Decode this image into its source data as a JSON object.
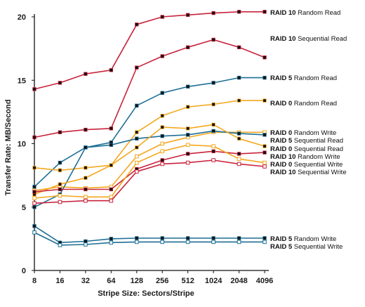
{
  "chart_data": {
    "type": "line",
    "xlabel": "Stripe Size: Sectors/Stripe",
    "ylabel": "Transfer Rate: MB/Second",
    "categories": [
      "8",
      "16",
      "32",
      "64",
      "128",
      "256",
      "512",
      "1024",
      "2048",
      "4096"
    ],
    "ylim": [
      0,
      20
    ],
    "yticks": [
      "0",
      "5",
      "10",
      "15",
      "20"
    ],
    "grid": false,
    "legend": "right, labels beside line ends",
    "series": [
      {
        "name_a": "RAID 10",
        "name_b": "Random Read",
        "color": "#c8233c",
        "marker": "filled",
        "values": [
          14.3,
          14.8,
          15.5,
          15.8,
          19.4,
          20.0,
          20.15,
          20.3,
          20.4,
          20.4
        ]
      },
      {
        "name_a": "RAID 10",
        "name_b": "Sequential Read",
        "color": "#c8233c",
        "marker": "filled",
        "values": [
          10.5,
          10.9,
          11.1,
          11.2,
          16.0,
          16.9,
          17.6,
          18.2,
          17.6,
          16.8
        ]
      },
      {
        "name_a": "RAID 5",
        "name_b": "Random Read",
        "color": "#1f6f96",
        "marker": "filled",
        "values": [
          6.6,
          8.5,
          9.7,
          10.1,
          13.0,
          14.0,
          14.5,
          14.8,
          15.2,
          15.2
        ]
      },
      {
        "name_a": "RAID 0",
        "name_b": "Random Read",
        "color": "#f3a81f",
        "marker": "filled",
        "values": [
          8.1,
          7.9,
          8.1,
          8.3,
          10.9,
          12.2,
          12.9,
          13.1,
          13.4,
          13.4
        ]
      },
      {
        "name_a": "RAID 0",
        "name_b": "Random Write",
        "color": "#f3a81f",
        "marker": "open",
        "values": [
          6.3,
          6.6,
          6.5,
          6.6,
          9.0,
          10.0,
          10.5,
          10.9,
          10.9,
          10.9
        ]
      },
      {
        "name_a": "RAID 5",
        "name_b": "Sequential Read",
        "color": "#1f6f96",
        "marker": "filled",
        "values": [
          5.0,
          6.0,
          9.7,
          9.9,
          10.4,
          10.6,
          10.7,
          11.0,
          10.8,
          10.7
        ]
      },
      {
        "name_a": "RAID 0",
        "name_b": "Sequential Read",
        "color": "#f3a81f",
        "marker": "filled",
        "values": [
          6.0,
          6.8,
          7.3,
          8.3,
          9.7,
          11.3,
          11.2,
          11.5,
          10.4,
          9.8
        ]
      },
      {
        "name_a": "RAID 10",
        "name_b": "Random Write",
        "color": "#c8233c",
        "marker": "filled",
        "values": [
          6.2,
          6.4,
          6.4,
          6.4,
          8.0,
          8.7,
          9.2,
          9.4,
          9.2,
          9.3
        ]
      },
      {
        "name_a": "RAID 0",
        "name_b": "Sequential Write",
        "color": "#f3a81f",
        "marker": "open",
        "values": [
          5.7,
          5.9,
          5.8,
          5.8,
          8.5,
          9.4,
          9.9,
          9.8,
          8.8,
          8.5
        ]
      },
      {
        "name_a": "RAID 10",
        "name_b": "Sequential Write",
        "color": "#c8233c",
        "marker": "open",
        "values": [
          5.3,
          5.4,
          5.5,
          5.5,
          7.8,
          8.4,
          8.5,
          8.7,
          8.4,
          8.2
        ]
      },
      {
        "name_a": "RAID 5",
        "name_b": "Random Write",
        "color": "#1f6f96",
        "marker": "filled",
        "values": [
          3.5,
          2.2,
          2.3,
          2.5,
          2.55,
          2.55,
          2.55,
          2.55,
          2.55,
          2.55
        ]
      },
      {
        "name_a": "RAID 5",
        "name_b": "Sequential Write",
        "color": "#1f6f96",
        "marker": "open",
        "values": [
          3.0,
          2.0,
          2.05,
          2.2,
          2.25,
          2.25,
          2.25,
          2.25,
          2.25,
          2.25
        ]
      }
    ]
  }
}
